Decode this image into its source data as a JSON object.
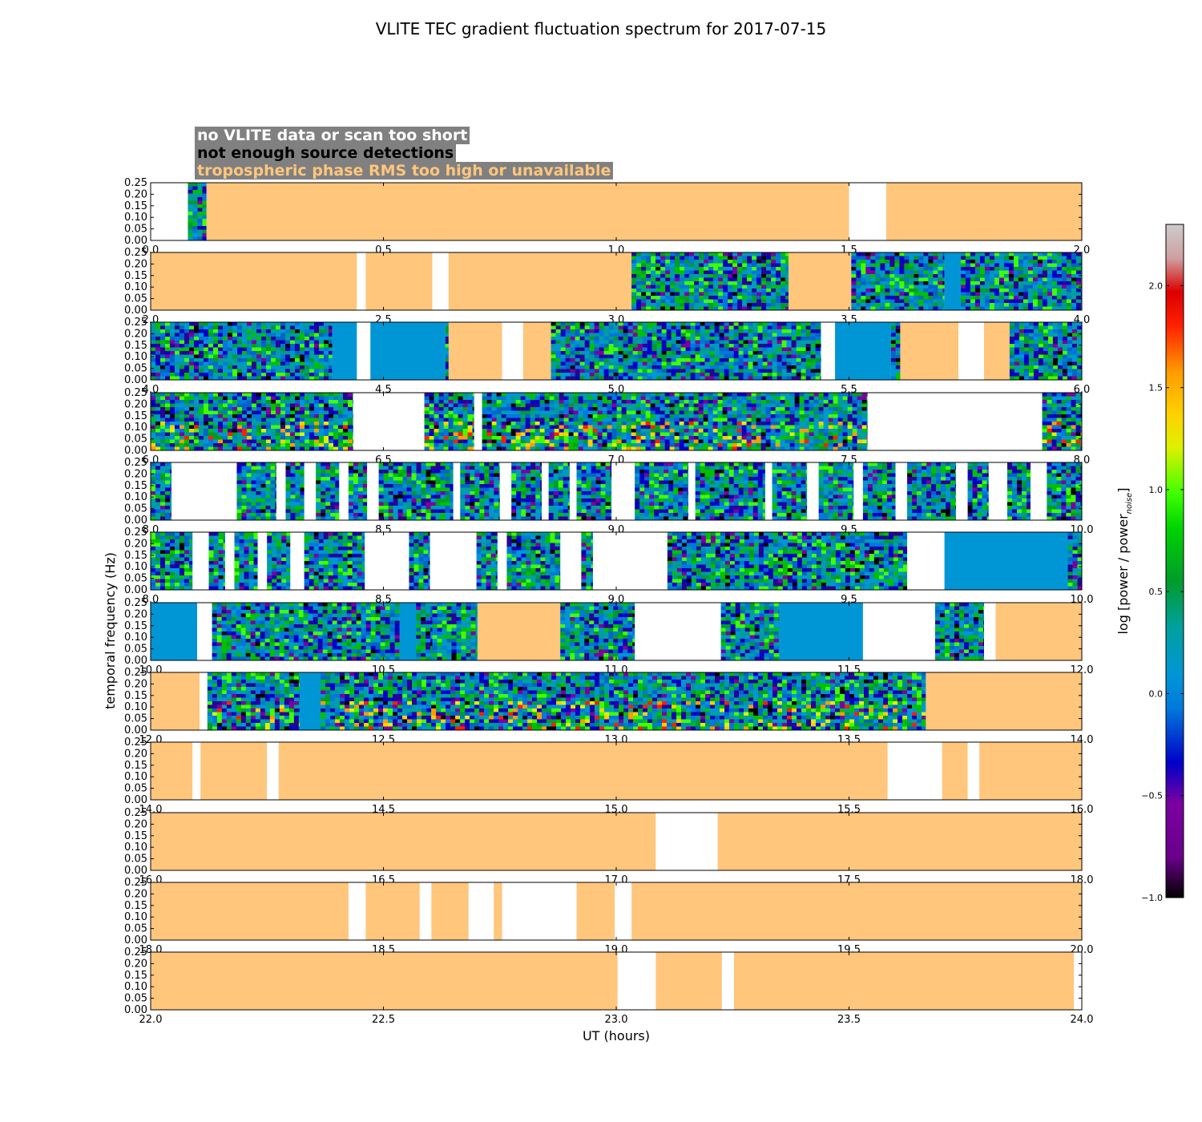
{
  "figure": {
    "title": "VLITE TEC gradient fluctuation spectrum for 2017-07-15"
  },
  "legend": [
    {
      "label": "no VLITE data or scan too short",
      "text_color": "#ffffff"
    },
    {
      "label": "not enough source detections",
      "text_color": "#000000"
    },
    {
      "label": "tropospheric phase RMS too high or unavailable",
      "text_color": "#ffc67c"
    }
  ],
  "colors": {
    "tropo_flag": "#ffc67c",
    "no_data": "#ffffff",
    "low_detect": "#0096d6",
    "legend_bg": "#808080"
  },
  "chart_data": {
    "type": "heatmap",
    "title": "VLITE TEC gradient fluctuation spectrum for 2017-07-15",
    "xlabel": "UT (hours)",
    "ylabel": "temporal frequency (Hz)",
    "ylim": [
      0,
      0.25
    ],
    "yticks": [
      "0.00",
      "0.05",
      "0.10",
      "0.15",
      "0.20",
      "0.25"
    ],
    "colorbar": {
      "label": "log [power / power",
      "label_sub": "noise",
      "label_end": "]",
      "range": [
        -1.0,
        2.3
      ],
      "ticks": [
        "−1.0",
        "−0.5",
        "0.0",
        "0.5",
        "1.0",
        "1.5",
        "2.0"
      ],
      "tick_values": [
        -1.0,
        -0.5,
        0.0,
        0.5,
        1.0,
        1.5,
        2.0
      ]
    },
    "panels": [
      {
        "xlim": [
          0,
          2
        ],
        "xticks": [
          "0.0",
          "0.5",
          "1.0",
          "1.5",
          "2.0"
        ],
        "segments": [
          [
            0.0,
            0.08,
            "none"
          ],
          [
            0.08,
            0.12,
            "data"
          ],
          [
            0.12,
            1.5,
            "tropo"
          ],
          [
            1.5,
            1.58,
            "none"
          ],
          [
            1.58,
            2.0,
            "tropo"
          ]
        ]
      },
      {
        "xlim": [
          2,
          4
        ],
        "xticks": [
          "2.0",
          "2.5",
          "3.0",
          "3.5",
          "4.0"
        ],
        "segments": [
          [
            2.0,
            2.443,
            "tropo"
          ],
          [
            2.443,
            2.462,
            "none"
          ],
          [
            2.462,
            2.605,
            "tropo"
          ],
          [
            2.605,
            2.64,
            "none"
          ],
          [
            2.64,
            3.033,
            "tropo"
          ],
          [
            3.033,
            3.37,
            "data"
          ],
          [
            3.37,
            3.505,
            "tropo"
          ],
          [
            3.505,
            3.705,
            "data"
          ],
          [
            3.705,
            3.74,
            "low"
          ],
          [
            3.74,
            4.0,
            "data"
          ]
        ]
      },
      {
        "xlim": [
          4,
          6
        ],
        "xticks": [
          "4.0",
          "4.5",
          "5.0",
          "5.5",
          "6.0"
        ],
        "segments": [
          [
            4.0,
            4.39,
            "data"
          ],
          [
            4.39,
            4.443,
            "low"
          ],
          [
            4.443,
            4.472,
            "none"
          ],
          [
            4.472,
            4.633,
            "low"
          ],
          [
            4.633,
            4.64,
            "data"
          ],
          [
            4.64,
            4.755,
            "tropo"
          ],
          [
            4.755,
            4.8,
            "none"
          ],
          [
            4.8,
            4.86,
            "tropo"
          ],
          [
            4.86,
            5.44,
            "data"
          ],
          [
            5.44,
            5.47,
            "none"
          ],
          [
            5.47,
            5.59,
            "low"
          ],
          [
            5.59,
            5.61,
            "data"
          ],
          [
            5.61,
            5.735,
            "tropo"
          ],
          [
            5.735,
            5.79,
            "none"
          ],
          [
            5.79,
            5.845,
            "tropo"
          ],
          [
            5.845,
            6.0,
            "data"
          ]
        ]
      },
      {
        "xlim": [
          6,
          8
        ],
        "xticks": [
          "6.0",
          "6.5",
          "7.0",
          "7.5",
          "8.0"
        ],
        "segments": [
          [
            6.0,
            6.435,
            "data"
          ],
          [
            6.435,
            6.588,
            "none"
          ],
          [
            6.588,
            6.695,
            "data"
          ],
          [
            6.695,
            6.712,
            "none"
          ],
          [
            6.712,
            7.54,
            "data"
          ],
          [
            7.54,
            7.915,
            "none"
          ],
          [
            7.915,
            8.0,
            "data"
          ]
        ]
      },
      {
        "xlim": [
          8,
          10
        ],
        "xticks": [
          "8.0",
          "8.5",
          "9.0",
          "9.5",
          "10.0"
        ],
        "segments": [
          [
            8.0,
            8.045,
            "data"
          ],
          [
            8.045,
            8.185,
            "none"
          ],
          [
            8.185,
            8.27,
            "data"
          ],
          [
            8.27,
            8.29,
            "none"
          ],
          [
            8.29,
            8.33,
            "data"
          ],
          [
            8.33,
            8.355,
            "none"
          ],
          [
            8.355,
            8.405,
            "data"
          ],
          [
            8.405,
            8.425,
            "none"
          ],
          [
            8.425,
            8.465,
            "data"
          ],
          [
            8.465,
            8.49,
            "none"
          ],
          [
            8.49,
            8.55,
            "data"
          ],
          [
            8.55,
            8.65,
            "data"
          ],
          [
            8.65,
            8.665,
            "none"
          ],
          [
            8.665,
            8.75,
            "data"
          ],
          [
            8.75,
            8.775,
            "none"
          ],
          [
            8.775,
            8.84,
            "data"
          ],
          [
            8.84,
            8.855,
            "none"
          ],
          [
            8.855,
            8.9,
            "data"
          ],
          [
            8.9,
            8.915,
            "none"
          ],
          [
            8.915,
            8.99,
            "data"
          ],
          [
            8.99,
            9.04,
            "none"
          ],
          [
            9.04,
            9.155,
            "data"
          ],
          [
            9.155,
            9.17,
            "none"
          ],
          [
            9.17,
            9.32,
            "data"
          ],
          [
            9.32,
            9.335,
            "none"
          ],
          [
            9.335,
            9.41,
            "data"
          ],
          [
            9.41,
            9.435,
            "none"
          ],
          [
            9.435,
            9.51,
            "data"
          ],
          [
            9.51,
            9.53,
            "none"
          ],
          [
            9.53,
            9.6,
            "data"
          ],
          [
            9.6,
            9.625,
            "none"
          ],
          [
            9.625,
            9.73,
            "data"
          ],
          [
            9.73,
            9.755,
            "none"
          ],
          [
            9.755,
            9.8,
            "data"
          ],
          [
            9.8,
            9.84,
            "none"
          ],
          [
            9.84,
            9.89,
            "data"
          ],
          [
            9.89,
            9.925,
            "none"
          ],
          [
            9.925,
            10.0,
            "data"
          ]
        ]
      },
      {
        "xlim": [
          8,
          10
        ],
        "xticks": [
          "8.0",
          "8.5",
          "9.0",
          "9.5",
          "10.0"
        ],
        "segments": [
          [
            8.0,
            8.09,
            "data"
          ],
          [
            8.09,
            8.125,
            "none"
          ],
          [
            8.125,
            8.16,
            "data"
          ],
          [
            8.16,
            8.18,
            "none"
          ],
          [
            8.18,
            8.23,
            "data"
          ],
          [
            8.23,
            8.25,
            "none"
          ],
          [
            8.25,
            8.3,
            "data"
          ],
          [
            8.3,
            8.33,
            "none"
          ],
          [
            8.33,
            8.46,
            "data"
          ],
          [
            8.46,
            8.5,
            "none"
          ],
          [
            8.5,
            8.555,
            "none"
          ],
          [
            8.555,
            8.6,
            "data"
          ],
          [
            8.6,
            8.7,
            "none"
          ],
          [
            8.7,
            8.745,
            "data"
          ],
          [
            8.745,
            8.765,
            "none"
          ],
          [
            8.765,
            8.88,
            "data"
          ],
          [
            8.88,
            8.925,
            "none"
          ],
          [
            8.925,
            8.95,
            "data"
          ],
          [
            8.95,
            9.11,
            "none"
          ],
          [
            9.11,
            9.625,
            "data"
          ],
          [
            9.625,
            9.705,
            "none"
          ],
          [
            9.705,
            9.97,
            "low"
          ],
          [
            9.97,
            10.0,
            "data"
          ]
        ]
      },
      {
        "xlim": [
          10,
          12
        ],
        "xticks": [
          "10.0",
          "10.5",
          "11.0",
          "11.5",
          "12.0"
        ],
        "segments": [
          [
            10.0,
            10.1,
            "low"
          ],
          [
            10.1,
            10.132,
            "none"
          ],
          [
            10.132,
            10.535,
            "data"
          ],
          [
            10.535,
            10.57,
            "low"
          ],
          [
            10.57,
            10.605,
            "data"
          ],
          [
            10.605,
            10.702,
            "data"
          ],
          [
            10.702,
            10.88,
            "tropo"
          ],
          [
            10.88,
            11.04,
            "data"
          ],
          [
            11.04,
            11.225,
            "none"
          ],
          [
            11.225,
            11.35,
            "data"
          ],
          [
            11.35,
            11.53,
            "low"
          ],
          [
            11.53,
            11.685,
            "none"
          ],
          [
            11.685,
            11.79,
            "data"
          ],
          [
            11.79,
            11.815,
            "none"
          ],
          [
            11.815,
            12.0,
            "tropo"
          ]
        ]
      },
      {
        "xlim": [
          12,
          14
        ],
        "xticks": [
          "12.0",
          "12.5",
          "13.0",
          "13.5",
          "14.0"
        ],
        "segments": [
          [
            12.0,
            12.105,
            "tropo"
          ],
          [
            12.105,
            12.122,
            "none"
          ],
          [
            12.122,
            12.32,
            "data"
          ],
          [
            12.32,
            12.365,
            "low"
          ],
          [
            12.365,
            13.665,
            "data"
          ],
          [
            13.665,
            14.0,
            "tropo"
          ]
        ]
      },
      {
        "xlim": [
          14,
          16
        ],
        "xticks": [
          "14.0",
          "14.5",
          "15.0",
          "15.5",
          "16.0"
        ],
        "segments": [
          [
            14.0,
            14.09,
            "tropo"
          ],
          [
            14.09,
            14.107,
            "none"
          ],
          [
            14.107,
            14.25,
            "tropo"
          ],
          [
            14.25,
            14.275,
            "none"
          ],
          [
            14.275,
            15.583,
            "tropo"
          ],
          [
            15.583,
            15.7,
            "none"
          ],
          [
            15.7,
            15.755,
            "tropo"
          ],
          [
            15.755,
            15.78,
            "none"
          ],
          [
            15.78,
            16.0,
            "tropo"
          ]
        ]
      },
      {
        "xlim": [
          16,
          18
        ],
        "xticks": [
          "16.0",
          "16.5",
          "17.0",
          "17.5",
          "18.0"
        ],
        "segments": [
          [
            16.0,
            17.085,
            "tropo"
          ],
          [
            17.085,
            17.218,
            "none"
          ],
          [
            17.218,
            18.0,
            "tropo"
          ]
        ]
      },
      {
        "xlim": [
          18,
          20
        ],
        "xticks": [
          "18.0",
          "18.5",
          "19.0",
          "19.5",
          "20.0"
        ],
        "segments": [
          [
            18.0,
            18.425,
            "tropo"
          ],
          [
            18.425,
            18.462,
            "none"
          ],
          [
            18.462,
            18.578,
            "tropo"
          ],
          [
            18.578,
            18.603,
            "none"
          ],
          [
            18.603,
            18.683,
            "tropo"
          ],
          [
            18.683,
            18.737,
            "none"
          ],
          [
            18.737,
            18.755,
            "tropo"
          ],
          [
            18.755,
            18.915,
            "none"
          ],
          [
            18.915,
            18.997,
            "tropo"
          ],
          [
            18.997,
            19.033,
            "none"
          ],
          [
            19.033,
            20.0,
            "tropo"
          ]
        ]
      },
      {
        "xlim": [
          22,
          24
        ],
        "xticks": [
          "22.0",
          "22.5",
          "23.0",
          "23.5",
          "24.0"
        ],
        "segments": [
          [
            22.0,
            23.003,
            "tropo"
          ],
          [
            23.003,
            23.085,
            "none"
          ],
          [
            23.085,
            23.227,
            "tropo"
          ],
          [
            23.227,
            23.253,
            "none"
          ],
          [
            23.253,
            23.983,
            "tropo"
          ],
          [
            23.983,
            24.0,
            "none"
          ]
        ]
      }
    ]
  }
}
